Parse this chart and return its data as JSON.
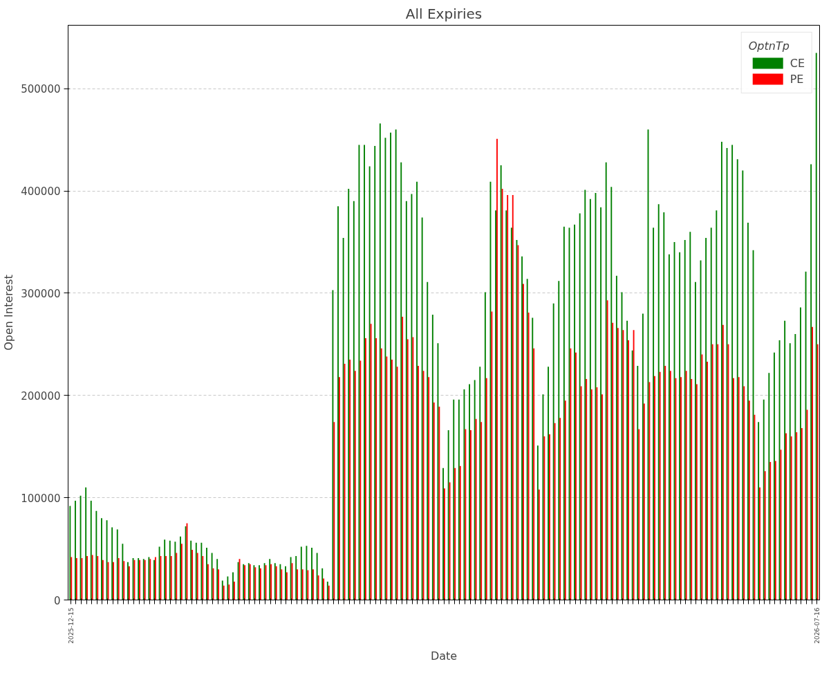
{
  "chart_data": {
    "type": "bar",
    "title": "All Expiries",
    "xlabel": "Date",
    "ylabel": "Open Interest",
    "legend_title": "OptnTp",
    "categories": [
      "2025-12-15",
      null,
      null,
      null,
      null,
      null,
      null,
      null,
      null,
      null,
      null,
      null,
      null,
      null,
      null,
      null,
      null,
      null,
      null,
      null,
      null,
      null,
      null,
      null,
      null,
      null,
      null,
      null,
      null,
      null,
      null,
      null,
      null,
      null,
      null,
      null,
      null,
      null,
      null,
      null,
      null,
      null,
      null,
      null,
      null,
      null,
      null,
      null,
      null,
      null,
      null,
      null,
      null,
      null,
      null,
      null,
      null,
      null,
      null,
      null,
      null,
      null,
      null,
      null,
      null,
      null,
      null,
      null,
      null,
      null,
      null,
      null,
      null,
      null,
      null,
      null,
      null,
      null,
      null,
      null,
      null,
      null,
      null,
      null,
      null,
      null,
      null,
      null,
      null,
      null,
      null,
      null,
      null,
      null,
      null,
      null,
      null,
      null,
      null,
      null,
      null,
      null,
      null,
      null,
      null,
      null,
      null,
      null,
      null,
      null,
      null,
      null,
      null,
      null,
      null,
      null,
      null,
      null,
      null,
      null,
      null,
      null,
      null,
      null,
      null,
      null,
      null,
      null,
      null,
      null,
      null,
      null,
      null,
      null,
      null,
      null,
      null,
      null,
      null,
      null,
      null,
      null,
      "2026-07-16"
    ],
    "series": [
      {
        "name": "CE",
        "color": "#008000",
        "values": [
          92000,
          97000,
          102000,
          110000,
          97000,
          87000,
          80000,
          78000,
          71000,
          69000,
          55000,
          37000,
          41000,
          41000,
          40000,
          42000,
          39000,
          52000,
          59000,
          58000,
          57000,
          62000,
          72000,
          58000,
          56000,
          56000,
          51000,
          46000,
          40000,
          19000,
          23000,
          27000,
          37000,
          35000,
          36000,
          34000,
          34000,
          36000,
          40000,
          36000,
          35000,
          33000,
          42000,
          43000,
          52000,
          53000,
          51000,
          46000,
          31000,
          18000,
          303000,
          385000,
          354000,
          402000,
          390000,
          445000,
          445000,
          424000,
          444000,
          466000,
          452000,
          457000,
          460000,
          428000,
          390000,
          397000,
          409000,
          374000,
          311000,
          279000,
          251000,
          129000,
          166000,
          196000,
          196000,
          206000,
          211000,
          215000,
          228000,
          301000,
          409000,
          381000,
          425000,
          381000,
          364000,
          352000,
          336000,
          314000,
          276000,
          151000,
          201000,
          228000,
          290000,
          312000,
          365000,
          364000,
          367000,
          378000,
          401000,
          392000,
          398000,
          384000,
          428000,
          404000,
          317000,
          301000,
          273000,
          244000,
          229000,
          280000,
          460000,
          364000,
          387000,
          379000,
          338000,
          350000,
          340000,
          352000,
          360000,
          311000,
          332000,
          354000,
          364000,
          381000,
          448000,
          442000,
          445000,
          431000,
          420000,
          369000,
          342000,
          174000,
          196000,
          222000,
          242000,
          254000,
          273000,
          251000,
          260000,
          286000,
          321000,
          426000,
          535000
        ]
      },
      {
        "name": "PE",
        "color": "#ff0000",
        "values": [
          42000,
          41000,
          41000,
          43000,
          44000,
          43000,
          39000,
          37000,
          37000,
          41000,
          38000,
          33000,
          39000,
          39000,
          39000,
          40000,
          42000,
          43000,
          43000,
          43000,
          46000,
          55000,
          75000,
          49000,
          46000,
          43000,
          35000,
          31000,
          30000,
          14000,
          15000,
          18000,
          40000,
          34000,
          35000,
          32000,
          31000,
          34000,
          35000,
          33000,
          30000,
          27000,
          36000,
          30000,
          30000,
          29000,
          30000,
          24000,
          21000,
          14000,
          174000,
          218000,
          231000,
          235000,
          224000,
          234000,
          256000,
          270000,
          256000,
          246000,
          238000,
          235000,
          228000,
          277000,
          255000,
          257000,
          229000,
          224000,
          218000,
          193000,
          189000,
          109000,
          115000,
          129000,
          131000,
          167000,
          166000,
          177000,
          174000,
          217000,
          282000,
          451000,
          402000,
          396000,
          396000,
          347000,
          309000,
          281000,
          246000,
          108000,
          160000,
          162000,
          173000,
          178000,
          195000,
          246000,
          242000,
          209000,
          216000,
          206000,
          208000,
          201000,
          293000,
          271000,
          266000,
          264000,
          254000,
          264000,
          167000,
          192000,
          213000,
          219000,
          223000,
          229000,
          224000,
          217000,
          218000,
          224000,
          216000,
          211000,
          240000,
          233000,
          250000,
          250000,
          269000,
          250000,
          217000,
          218000,
          209000,
          195000,
          181000,
          110000,
          126000,
          135000,
          136000,
          147000,
          163000,
          160000,
          164000,
          168000,
          186000,
          267000,
          250000
        ]
      }
    ],
    "ylim": [
      0,
      562000
    ],
    "yticks": [
      0,
      100000,
      200000,
      300000,
      400000,
      500000
    ],
    "grid": "y",
    "legend": "top right"
  }
}
